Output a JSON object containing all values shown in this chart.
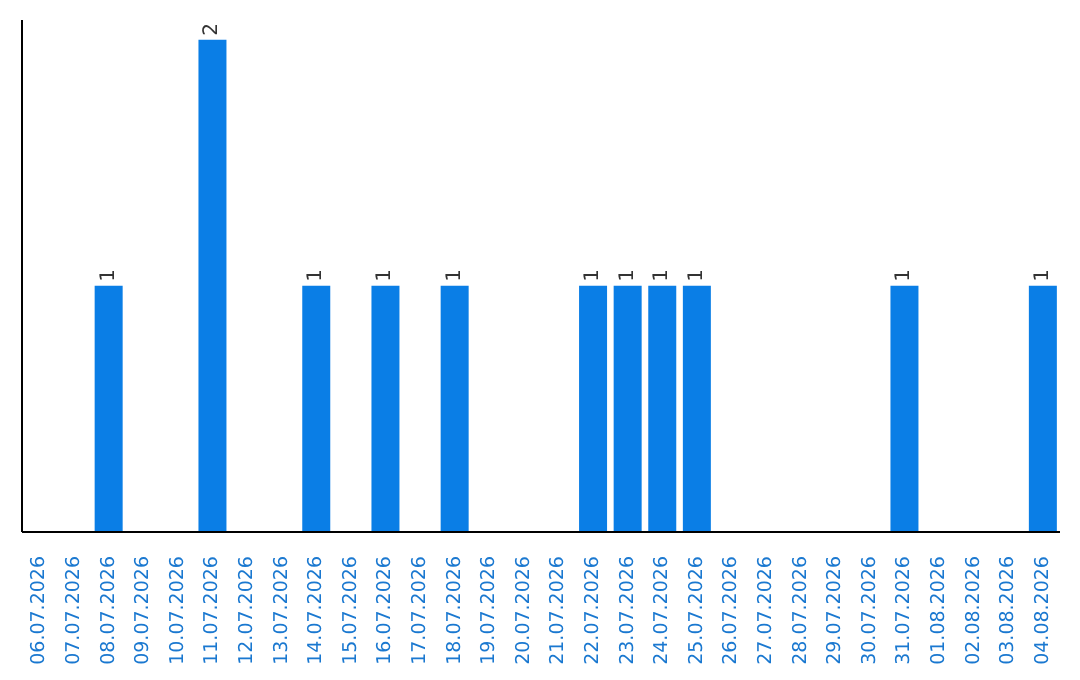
{
  "chart_data": {
    "type": "bar",
    "categories": [
      "06.07.2026",
      "07.07.2026",
      "08.07.2026",
      "09.07.2026",
      "10.07.2026",
      "11.07.2026",
      "12.07.2026",
      "13.07.2026",
      "14.07.2026",
      "15.07.2026",
      "16.07.2026",
      "17.07.2026",
      "18.07.2026",
      "19.07.2026",
      "20.07.2026",
      "21.07.2026",
      "22.07.2026",
      "23.07.2026",
      "24.07.2026",
      "25.07.2026",
      "26.07.2026",
      "27.07.2026",
      "28.07.2026",
      "29.07.2026",
      "30.07.2026",
      "31.07.2026",
      "01.08.2026",
      "02.08.2026",
      "03.08.2026",
      "04.08.2026"
    ],
    "values": [
      0,
      0,
      1,
      0,
      0,
      2,
      0,
      0,
      1,
      0,
      1,
      0,
      1,
      0,
      0,
      0,
      1,
      1,
      1,
      1,
      0,
      0,
      0,
      0,
      0,
      1,
      0,
      0,
      0,
      1
    ],
    "value_labels": [
      null,
      null,
      "1",
      null,
      null,
      "2",
      null,
      null,
      "1",
      null,
      "1",
      null,
      "1",
      null,
      null,
      null,
      "1",
      "1",
      "1",
      "1",
      null,
      null,
      null,
      null,
      null,
      "1",
      null,
      null,
      null,
      "1"
    ],
    "color": "#0a7ee6",
    "tick_labels": "x",
    "grid": false,
    "legend": false
  }
}
